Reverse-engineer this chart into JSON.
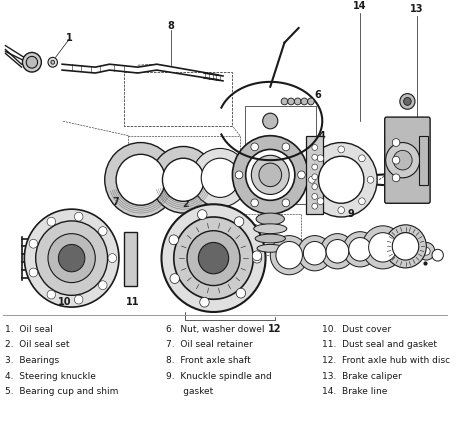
{
  "bg_color": "#f0f0f0",
  "line_color": "#1a1a1a",
  "gray_dark": "#333333",
  "gray_med": "#666666",
  "gray_light": "#999999",
  "gray_fill": "#bbbbbb",
  "gray_lighter": "#cccccc",
  "gray_lightest": "#e0e0e0",
  "legend_col1": [
    "1.  Oil seal",
    "2.  Oil seal set",
    "3.  Bearings",
    "4.  Steering knuckle",
    "5.  Bearing cup and shim"
  ],
  "legend_col2": [
    "6.  Nut, washer dowel",
    "7.  Oil seal retainer",
    "8.  Front axle shaft",
    "9.  Knuckle spindle and",
    "      gasket"
  ],
  "legend_col3": [
    "10.  Dust cover",
    "11.  Dust seal and gasket",
    "12.  Front axle hub with disc",
    "13.  Brake caliper",
    "14.  Brake line"
  ],
  "font_size": 6.5
}
